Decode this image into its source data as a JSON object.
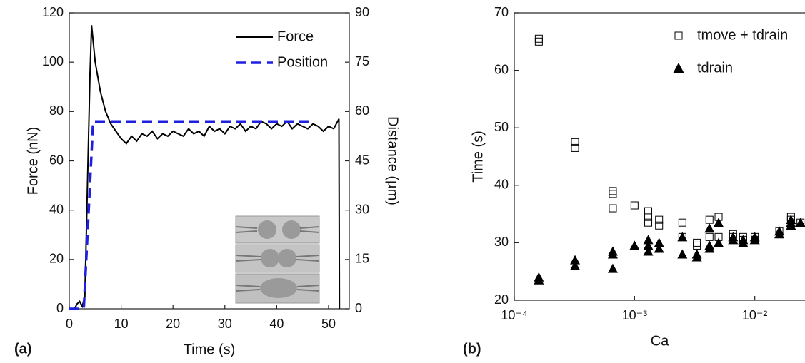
{
  "chart_data": [
    {
      "type": "line",
      "panel_label": "(a)",
      "xlabel": "Time (s)",
      "ylabel": "Force (nN)",
      "y2label": "Distance (µm)",
      "xlim": [
        0,
        54
      ],
      "xticks": [
        0,
        10,
        20,
        30,
        40,
        50
      ],
      "ylim": [
        0,
        120
      ],
      "yticks": [
        0,
        20,
        40,
        60,
        80,
        100,
        120
      ],
      "y2lim": [
        0,
        90
      ],
      "y2ticks": [
        0,
        15,
        30,
        45,
        60,
        75,
        90
      ],
      "legend": "upper right",
      "series": [
        {
          "name": "Force",
          "color": "#000000",
          "dash": false,
          "x": [
            0,
            1,
            1.5,
            2,
            2.5,
            3,
            3.5,
            4,
            4.3,
            5,
            6,
            7,
            8,
            9,
            10,
            11,
            12,
            13,
            14,
            15,
            16,
            17,
            18,
            19,
            20,
            21,
            22,
            23,
            24,
            25,
            26,
            27,
            28,
            29,
            30,
            31,
            32,
            33,
            34,
            35,
            36,
            37,
            38,
            39,
            40,
            41,
            42,
            43,
            44,
            45,
            46,
            47,
            48,
            49,
            50,
            51,
            52,
            52.1
          ],
          "values": [
            0,
            0,
            2,
            3,
            1,
            5,
            50,
            95,
            115,
            100,
            88,
            80,
            75,
            72,
            69,
            67,
            70,
            68,
            71,
            70,
            72,
            69,
            71,
            70,
            72,
            71,
            70,
            73,
            71,
            72,
            70,
            74,
            72,
            73,
            71,
            74,
            73,
            75,
            72,
            74,
            73,
            76,
            75,
            73,
            75,
            74,
            76,
            73,
            75,
            74,
            73,
            75,
            74,
            72,
            74,
            73,
            77,
            0
          ]
        },
        {
          "name": "Position",
          "color": "#1f1fe0",
          "dash": true,
          "axis": "y2",
          "x": [
            0,
            2.8,
            4.6,
            47
          ],
          "values": [
            0,
            0,
            57,
            57
          ]
        }
      ]
    },
    {
      "type": "scatter",
      "panel_label": "(b)",
      "xlabel": "Ca",
      "ylabel": "Time (s)",
      "xscale": "log",
      "xlim": [
        0.0001,
        0.03
      ],
      "xticks": [
        {
          "value": 0.0001,
          "label": "10⁻⁴"
        },
        {
          "value": 0.001,
          "label": "10⁻³"
        },
        {
          "value": 0.01,
          "label": "10⁻²"
        }
      ],
      "ylim": [
        20,
        70
      ],
      "yticks": [
        20,
        30,
        40,
        50,
        60,
        70
      ],
      "legend": "upper right",
      "series": [
        {
          "name": "tmove + tdrain",
          "color": "#000000",
          "marker": "square",
          "x": [
            0.00016,
            0.00016,
            0.00032,
            0.00032,
            0.00066,
            0.00066,
            0.00066,
            0.001,
            0.0013,
            0.0013,
            0.0013,
            0.0016,
            0.0016,
            0.0025,
            0.0025,
            0.0033,
            0.0033,
            0.0042,
            0.0042,
            0.005,
            0.005,
            0.0066,
            0.0066,
            0.008,
            0.008,
            0.01,
            0.01,
            0.016,
            0.02,
            0.02,
            0.024
          ],
          "values": [
            65.5,
            65,
            47.5,
            46.5,
            39,
            38.5,
            36,
            36.5,
            35.5,
            34.5,
            33.5,
            34,
            33,
            33.5,
            31,
            30,
            29.5,
            34,
            31,
            34.5,
            31,
            31.5,
            31,
            31,
            30.5,
            31,
            30.5,
            32,
            34.5,
            34,
            33.5
          ]
        },
        {
          "name": "tdrain",
          "color": "#000000",
          "marker": "triangle",
          "x": [
            0.00016,
            0.00016,
            0.00032,
            0.00032,
            0.00066,
            0.00066,
            0.00066,
            0.001,
            0.0013,
            0.0013,
            0.0013,
            0.0016,
            0.0016,
            0.0025,
            0.0025,
            0.0033,
            0.0033,
            0.0042,
            0.0042,
            0.0042,
            0.005,
            0.005,
            0.0066,
            0.0066,
            0.008,
            0.008,
            0.01,
            0.01,
            0.016,
            0.016,
            0.02,
            0.02,
            0.02,
            0.024
          ],
          "values": [
            24,
            23.5,
            27,
            26,
            28.5,
            28,
            25.5,
            29.5,
            30.5,
            29.5,
            28.5,
            30,
            29,
            31,
            28,
            28,
            27.5,
            32.5,
            29.5,
            29,
            33.5,
            30,
            31,
            30.5,
            30.5,
            30,
            31,
            30.5,
            32,
            31.5,
            34,
            33.5,
            33,
            33.5
          ]
        }
      ]
    }
  ]
}
